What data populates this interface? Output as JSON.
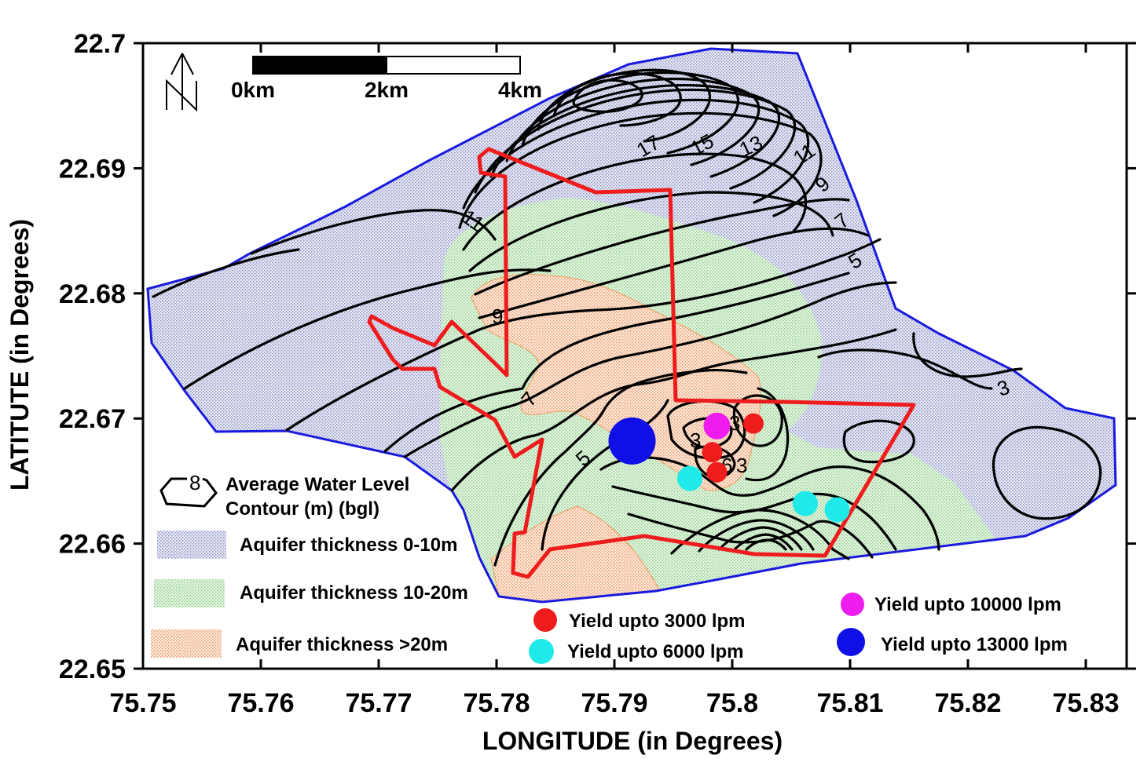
{
  "axes": {
    "xlabel": "LONGITUDE (in Degrees)",
    "ylabel": "LATITUTE (in Degrees)",
    "x_ticks": [
      "75.75",
      "75.76",
      "75.77",
      "75.78",
      "75.79",
      "75.8",
      "75.81",
      "75.82",
      "75.83"
    ],
    "y_ticks": [
      "22.7",
      "22.69",
      "22.68",
      "22.67",
      "22.66",
      "22.65"
    ]
  },
  "scale_bar": {
    "labels": [
      "0km",
      "2km",
      "4km"
    ]
  },
  "north_arrow": {
    "icon": "north-arrow-icon"
  },
  "contour_labels": [
    "17",
    "15",
    "13",
    "11",
    "9",
    "7",
    "5",
    "11",
    "9",
    "7",
    "5",
    "3",
    "3",
    "3",
    "3",
    "6"
  ],
  "legend": {
    "contour_sample_value": "8",
    "contour_title_line1": "Average Water Level",
    "contour_title_line2": "Contour (m) (bgl)",
    "aquifer_0_10": "Aquifer thickness 0-10m",
    "aquifer_10_20": "Aquifer thickness 10-20m",
    "aquifer_gt20": "Aquifer thickness >20m",
    "yield_3000": "Yield upto 3000 lpm",
    "yield_6000": "Yield upto 6000 lpm",
    "yield_10000": "Yield upto 10000 lpm",
    "yield_13000": "Yield upto 13000 lpm"
  },
  "colors": {
    "boundary": "#1a1adf",
    "aquifer_0_10": "#c9cde6",
    "aquifer_10_20": "#c6e8c4",
    "aquifer_gt20": "#f5cdb0",
    "red_outline": "#ee1c1c",
    "yield_3000": "#ee1c1c",
    "yield_6000": "#1fe9e9",
    "yield_10000": "#ee1cee",
    "yield_13000": "#1010e6"
  },
  "wells": [
    {
      "lon": 75.7915,
      "lat": 22.6682,
      "class": "yield_13000"
    },
    {
      "lon": 75.7987,
      "lat": 22.6694,
      "class": "yield_10000"
    },
    {
      "lon": 75.8018,
      "lat": 22.6696,
      "class": "yield_3000"
    },
    {
      "lon": 75.7983,
      "lat": 22.6673,
      "class": "yield_3000"
    },
    {
      "lon": 75.7987,
      "lat": 22.6657,
      "class": "yield_3000"
    },
    {
      "lon": 75.7964,
      "lat": 22.6652,
      "class": "yield_6000"
    },
    {
      "lon": 75.8062,
      "lat": 22.6632,
      "class": "yield_6000"
    },
    {
      "lon": 75.8089,
      "lat": 22.6627,
      "class": "yield_6000"
    }
  ]
}
